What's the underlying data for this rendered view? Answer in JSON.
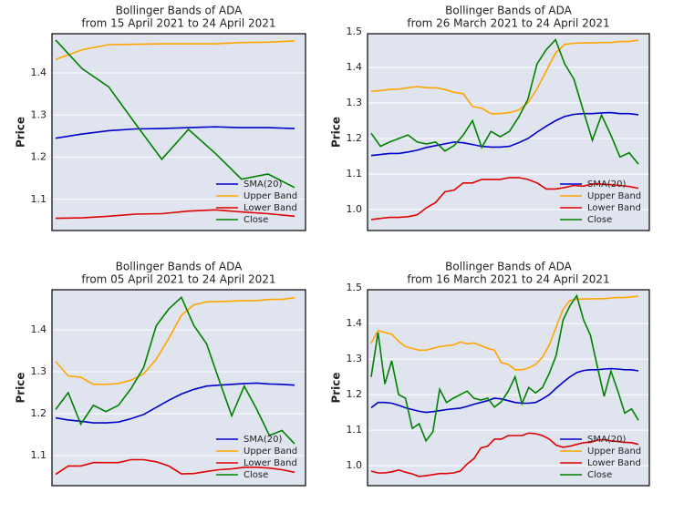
{
  "chart_data": [
    {
      "type": "line",
      "title": "Bollinger Bands of ADA",
      "subtitle": "from 15 April 2021 to 24 April 2021",
      "y_label": "Price",
      "ylim": [
        1.026,
        1.493
      ],
      "yticks": [
        1.1,
        1.2,
        1.3,
        1.4
      ],
      "grid": true,
      "legend": "lower right",
      "series": [
        {
          "name": "SMA(20)",
          "color": "#0000cc",
          "values": [
            1.245,
            1.255,
            1.263,
            1.267,
            1.268,
            1.27,
            1.272,
            1.27,
            1.27,
            1.268
          ]
        },
        {
          "name": "Upper Band",
          "color": "#ffa500",
          "values": [
            1.432,
            1.455,
            1.467,
            1.468,
            1.469,
            1.469,
            1.469,
            1.472,
            1.473,
            1.476
          ]
        },
        {
          "name": "Lower Band",
          "color": "#e00000",
          "values": [
            1.055,
            1.056,
            1.06,
            1.065,
            1.066,
            1.072,
            1.075,
            1.07,
            1.066,
            1.06
          ]
        },
        {
          "name": "Close",
          "color": "#008000",
          "values": [
            1.478,
            1.41,
            1.367,
            1.28,
            1.195,
            1.266,
            1.21,
            1.148,
            1.16,
            1.128
          ]
        }
      ]
    },
    {
      "type": "line",
      "title": "Bollinger Bands of ADA",
      "subtitle": "from 26 March 2021 to 24 April 2021",
      "y_label": "Price",
      "ylim": [
        0.941,
        1.495
      ],
      "yticks": [
        {
          "value": 1,
          "label": "1.0"
        },
        1.1,
        1.2,
        1.3,
        1.4,
        1.5
      ],
      "grid": true,
      "legend": "lower right",
      "series": [
        {
          "name": "SMA(20)",
          "color": "#0000cc",
          "values": [
            1.152,
            1.155,
            1.158,
            1.158,
            1.162,
            1.167,
            1.175,
            1.18,
            1.185,
            1.19,
            1.188,
            1.183,
            1.178,
            1.176,
            1.176,
            1.178,
            1.188,
            1.2,
            1.218,
            1.235,
            1.25,
            1.262,
            1.268,
            1.27,
            1.27,
            1.272,
            1.273,
            1.27,
            1.27,
            1.267
          ]
        },
        {
          "name": "Upper Band",
          "color": "#ffa500",
          "values": [
            1.333,
            1.335,
            1.338,
            1.339,
            1.343,
            1.346,
            1.343,
            1.343,
            1.338,
            1.33,
            1.326,
            1.29,
            1.285,
            1.27,
            1.27,
            1.273,
            1.28,
            1.3,
            1.34,
            1.39,
            1.44,
            1.465,
            1.468,
            1.469,
            1.469,
            1.47,
            1.47,
            1.473,
            1.473,
            1.477
          ]
        },
        {
          "name": "Lower Band",
          "color": "#e00000",
          "values": [
            0.972,
            0.975,
            0.978,
            0.978,
            0.98,
            0.985,
            1.005,
            1.02,
            1.05,
            1.055,
            1.075,
            1.075,
            1.085,
            1.085,
            1.085,
            1.09,
            1.09,
            1.085,
            1.075,
            1.058,
            1.058,
            1.062,
            1.068,
            1.066,
            1.072,
            1.072,
            1.07,
            1.068,
            1.065,
            1.06
          ]
        },
        {
          "name": "Close",
          "color": "#008000",
          "values": [
            1.215,
            1.178,
            1.19,
            1.2,
            1.21,
            1.19,
            1.185,
            1.19,
            1.165,
            1.18,
            1.21,
            1.25,
            1.175,
            1.22,
            1.205,
            1.22,
            1.26,
            1.31,
            1.41,
            1.45,
            1.478,
            1.41,
            1.367,
            1.28,
            1.195,
            1.266,
            1.21,
            1.148,
            1.16,
            1.128
          ]
        }
      ]
    },
    {
      "type": "line",
      "title": "Bollinger Bands of ADA",
      "subtitle": "from 05 April 2021 to 24 April 2021",
      "y_label": "Price",
      "ylim": [
        1.028,
        1.496
      ],
      "yticks": [
        1.1,
        1.2,
        1.3,
        1.4
      ],
      "grid": true,
      "legend": "lower right",
      "series": [
        {
          "name": "SMA(20)",
          "color": "#0000cc",
          "values": [
            1.19,
            1.185,
            1.182,
            1.178,
            1.178,
            1.18,
            1.188,
            1.198,
            1.215,
            1.232,
            1.247,
            1.258,
            1.266,
            1.268,
            1.27,
            1.272,
            1.273,
            1.271,
            1.27,
            1.268
          ]
        },
        {
          "name": "Upper Band",
          "color": "#ffa500",
          "values": [
            1.325,
            1.29,
            1.287,
            1.27,
            1.27,
            1.272,
            1.28,
            1.295,
            1.33,
            1.38,
            1.435,
            1.46,
            1.467,
            1.468,
            1.469,
            1.47,
            1.47,
            1.473,
            1.473,
            1.477
          ]
        },
        {
          "name": "Lower Band",
          "color": "#e00000",
          "values": [
            1.055,
            1.075,
            1.075,
            1.083,
            1.083,
            1.083,
            1.09,
            1.09,
            1.085,
            1.075,
            1.056,
            1.057,
            1.062,
            1.066,
            1.068,
            1.072,
            1.072,
            1.07,
            1.066,
            1.06
          ]
        },
        {
          "name": "Close",
          "color": "#008000",
          "values": [
            1.21,
            1.25,
            1.175,
            1.22,
            1.205,
            1.22,
            1.26,
            1.31,
            1.41,
            1.45,
            1.478,
            1.41,
            1.367,
            1.28,
            1.195,
            1.266,
            1.21,
            1.148,
            1.16,
            1.128
          ]
        }
      ]
    },
    {
      "type": "line",
      "title": "Bollinger Bands of ADA",
      "subtitle": "from 16 March 2021 to 24 April 2021",
      "y_label": "Price",
      "ylim": [
        0.944,
        1.495
      ],
      "yticks": [
        {
          "value": 1,
          "label": "1.0"
        },
        1.1,
        1.2,
        1.3,
        1.4,
        1.5
      ],
      "grid": true,
      "legend": "lower right",
      "series": [
        {
          "name": "SMA(20)",
          "color": "#0000cc",
          "values": [
            1.163,
            1.178,
            1.178,
            1.176,
            1.17,
            1.163,
            1.158,
            1.153,
            1.15,
            1.152,
            1.155,
            1.158,
            1.16,
            1.162,
            1.167,
            1.173,
            1.178,
            1.183,
            1.19,
            1.188,
            1.183,
            1.178,
            1.176,
            1.176,
            1.178,
            1.188,
            1.2,
            1.218,
            1.235,
            1.25,
            1.262,
            1.268,
            1.27,
            1.27,
            1.272,
            1.273,
            1.272,
            1.27,
            1.27,
            1.267
          ]
        },
        {
          "name": "Upper Band",
          "color": "#ffa500",
          "values": [
            1.345,
            1.38,
            1.375,
            1.37,
            1.35,
            1.335,
            1.33,
            1.325,
            1.325,
            1.33,
            1.335,
            1.338,
            1.34,
            1.348,
            1.343,
            1.345,
            1.338,
            1.33,
            1.325,
            1.29,
            1.285,
            1.27,
            1.27,
            1.275,
            1.285,
            1.305,
            1.34,
            1.39,
            1.44,
            1.465,
            1.468,
            1.469,
            1.469,
            1.47,
            1.47,
            1.472,
            1.473,
            1.473,
            1.475,
            1.477
          ]
        },
        {
          "name": "Lower Band",
          "color": "#e00000",
          "values": [
            0.985,
            0.98,
            0.98,
            0.983,
            0.988,
            0.982,
            0.977,
            0.97,
            0.972,
            0.975,
            0.978,
            0.978,
            0.98,
            0.985,
            1.005,
            1.02,
            1.05,
            1.055,
            1.075,
            1.075,
            1.085,
            1.085,
            1.085,
            1.092,
            1.09,
            1.085,
            1.075,
            1.058,
            1.052,
            1.055,
            1.06,
            1.065,
            1.066,
            1.072,
            1.074,
            1.07,
            1.068,
            1.066,
            1.065,
            1.06
          ]
        },
        {
          "name": "Close",
          "color": "#008000",
          "values": [
            1.25,
            1.375,
            1.23,
            1.295,
            1.2,
            1.19,
            1.105,
            1.118,
            1.07,
            1.095,
            1.215,
            1.178,
            1.19,
            1.2,
            1.21,
            1.19,
            1.185,
            1.19,
            1.165,
            1.18,
            1.21,
            1.25,
            1.175,
            1.22,
            1.205,
            1.22,
            1.26,
            1.31,
            1.41,
            1.45,
            1.478,
            1.41,
            1.367,
            1.28,
            1.195,
            1.266,
            1.21,
            1.148,
            1.16,
            1.128
          ]
        }
      ]
    }
  ]
}
